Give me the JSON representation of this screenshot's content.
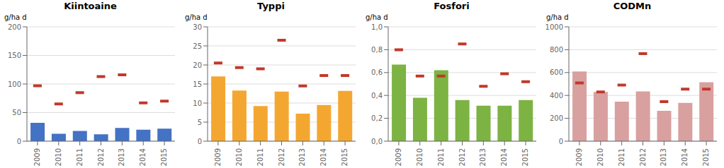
{
  "chart_data": [
    {
      "type": "bar",
      "title": "Kiintoaine",
      "ylabel": "g/ha d",
      "categories": [
        "2009",
        "2010",
        "2011",
        "2012",
        "2013",
        "2014",
        "2015"
      ],
      "series": [
        {
          "type": "bar",
          "color": "#4472C4",
          "values": [
            32,
            13,
            18,
            12,
            23,
            20,
            22
          ]
        },
        {
          "type": "scatter",
          "marker": "hline",
          "color": "#C0392B",
          "values": [
            97,
            65,
            85,
            113,
            116,
            67,
            70
          ]
        }
      ],
      "ylim": [
        0,
        200
      ],
      "yticks": [
        0,
        50,
        100,
        150,
        200
      ],
      "grid": true
    },
    {
      "type": "bar",
      "title": "Typpi",
      "ylabel": "g/ha d",
      "categories": [
        "2009",
        "2010",
        "2011",
        "2012",
        "2013",
        "2014",
        "2015"
      ],
      "series": [
        {
          "type": "bar",
          "color": "#F4A730",
          "values": [
            17,
            13.3,
            9.2,
            13,
            7.2,
            9.5,
            13.2
          ]
        },
        {
          "type": "scatter",
          "marker": "hline",
          "color": "#C0392B",
          "values": [
            20.5,
            19.3,
            19.0,
            26.5,
            14.5,
            17.2,
            17.2
          ]
        }
      ],
      "ylim": [
        0,
        30
      ],
      "yticks": [
        0,
        5,
        10,
        15,
        20,
        25,
        30
      ],
      "grid": true
    },
    {
      "type": "bar",
      "title": "Fosfori",
      "ylabel": "g/ha d",
      "categories": [
        "2009",
        "2010",
        "2011",
        "2012",
        "2013",
        "2014",
        "2015"
      ],
      "series": [
        {
          "type": "bar",
          "color": "#7CB342",
          "values": [
            0.67,
            0.38,
            0.62,
            0.36,
            0.31,
            0.31,
            0.36
          ]
        },
        {
          "type": "scatter",
          "marker": "hline",
          "color": "#C0392B",
          "values": [
            0.8,
            0.57,
            0.57,
            0.85,
            0.48,
            0.59,
            0.52
          ]
        }
      ],
      "ylim": [
        0,
        1.0
      ],
      "yticks": [
        {
          "value": 0.0,
          "label": "0,0"
        },
        {
          "value": 0.2,
          "label": "0,2"
        },
        {
          "value": 0.4,
          "label": "0,4"
        },
        {
          "value": 0.6,
          "label": "0,6"
        },
        {
          "value": 0.8,
          "label": "0,8"
        },
        {
          "value": 1.0,
          "label": "1,0"
        }
      ],
      "grid": true
    },
    {
      "type": "bar",
      "title": "CODMn",
      "ylabel": "g/ha d",
      "categories": [
        "2009",
        "2010",
        "2011",
        "2012",
        "2013",
        "2014",
        "2015"
      ],
      "series": [
        {
          "type": "bar",
          "color": "#D9A0A0",
          "values": [
            610,
            430,
            345,
            435,
            265,
            335,
            515
          ]
        },
        {
          "type": "scatter",
          "marker": "hline",
          "color": "#C0392B",
          "values": [
            510,
            430,
            490,
            765,
            345,
            455,
            455
          ]
        }
      ],
      "ylim": [
        0,
        1000
      ],
      "yticks": [
        0,
        200,
        400,
        600,
        800,
        1000
      ],
      "grid": true
    }
  ]
}
